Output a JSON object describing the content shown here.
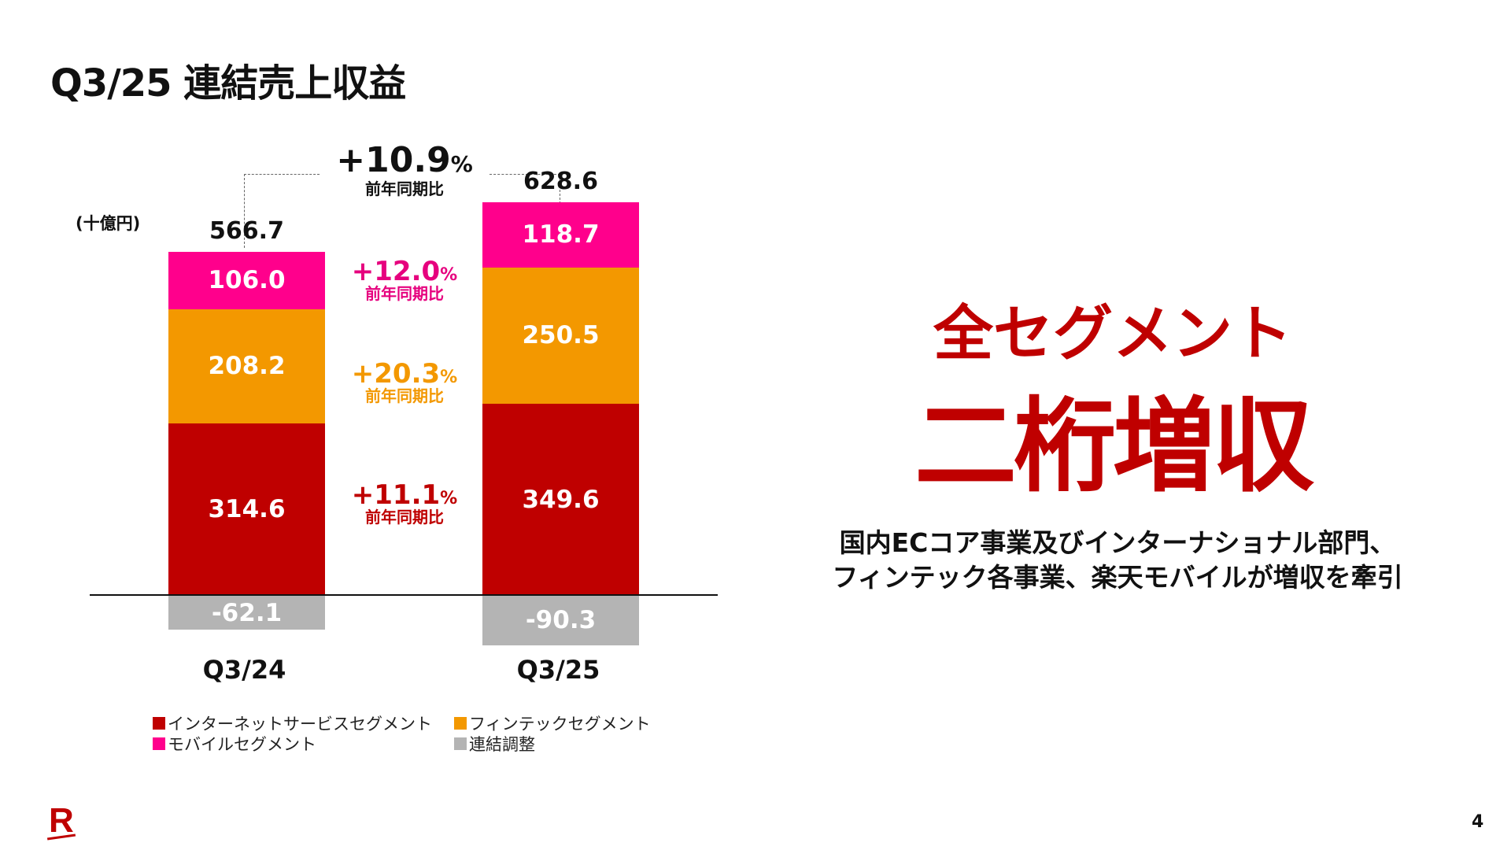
{
  "title": "Q3/25 連結売上収益",
  "unit": "(十億円)",
  "total_growth": {
    "value": "+10.9",
    "pct": "%",
    "label": "前年同期比"
  },
  "chart_data": {
    "type": "bar",
    "stacked": true,
    "categories": [
      "Q3/24",
      "Q3/25"
    ],
    "totals": [
      "566.7",
      "628.6"
    ],
    "series": [
      {
        "name": "インターネットサービスセグメント",
        "values": [
          314.6,
          349.6
        ],
        "labels": [
          "314.6",
          "349.6"
        ],
        "color": "#bf0000"
      },
      {
        "name": "フィンテックセグメント",
        "values": [
          208.2,
          250.5
        ],
        "labels": [
          "208.2",
          "250.5"
        ],
        "color": "#f39800"
      },
      {
        "name": "モバイルセグメント",
        "values": [
          106.0,
          118.7
        ],
        "labels": [
          "106.0",
          "118.7"
        ],
        "color": "#ff008c"
      },
      {
        "name": "連結調整",
        "values": [
          -62.1,
          -90.3
        ],
        "labels": [
          "-62.1",
          "-90.3"
        ],
        "color": "#b4b4b4"
      }
    ],
    "segment_growth": [
      {
        "value": "+12.0",
        "pct": "%",
        "label": "前年同期比",
        "color": "#e6007e"
      },
      {
        "value": "+20.3",
        "pct": "%",
        "label": "前年同期比",
        "color": "#f39800"
      },
      {
        "value": "+11.1",
        "pct": "%",
        "label": "前年同期比",
        "color": "#bf0000"
      }
    ]
  },
  "legend": [
    {
      "label": "インターネットサービスセグメント",
      "color": "#bf0000"
    },
    {
      "label": "フィンテックセグメント",
      "color": "#f39800"
    },
    {
      "label": "モバイルセグメント",
      "color": "#ff008c"
    },
    {
      "label": "連結調整",
      "color": "#b4b4b4"
    }
  ],
  "headline": {
    "line1": "全セグメント",
    "line2": "二桁増収"
  },
  "description": {
    "line1": "国内ECコア事業及びインターナショナル部門、",
    "line2": "フィンテック各事業、楽天モバイルが増収を牽引"
  },
  "logo": "R",
  "page_number": "4"
}
